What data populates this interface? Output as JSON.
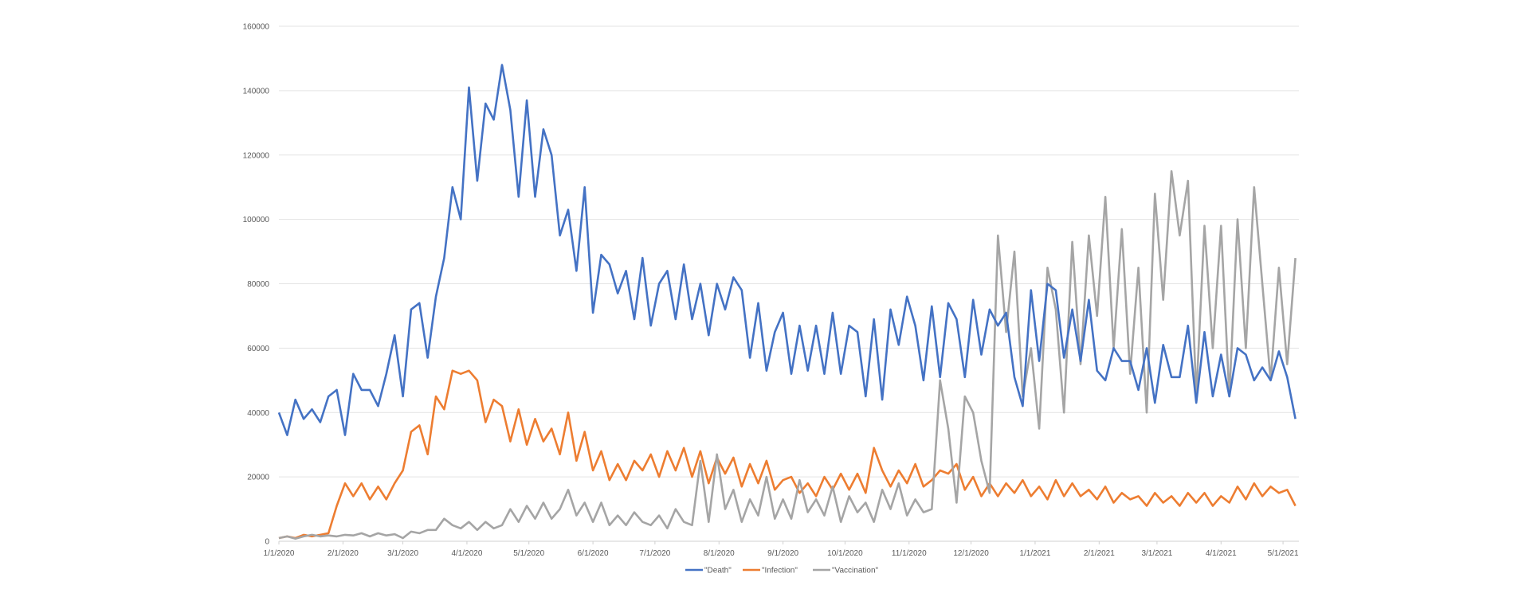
{
  "chart_data": {
    "type": "line",
    "title": "",
    "xlabel": "",
    "ylabel": "",
    "ylim": [
      0,
      160000
    ],
    "yticks": [
      0,
      20000,
      40000,
      60000,
      80000,
      100000,
      120000,
      140000,
      160000
    ],
    "xlim": [
      "1/1/2020",
      "5/11/2021"
    ],
    "xticks": [
      "1/1/2020",
      "2/1/2020",
      "3/1/2020",
      "4/1/2020",
      "5/1/2020",
      "6/1/2020",
      "7/1/2020",
      "8/1/2020",
      "9/1/2020",
      "10/1/2020",
      "11/1/2020",
      "12/1/2020",
      "1/1/2021",
      "2/1/2021",
      "3/1/2021",
      "4/1/2021",
      "5/1/2021"
    ],
    "grid": "horizontal",
    "legend_position": "bottom",
    "x": [
      "1/1/2020",
      "1/5/2020",
      "1/9/2020",
      "1/13/2020",
      "1/17/2020",
      "1/21/2020",
      "1/25/2020",
      "1/29/2020",
      "2/2/2020",
      "2/6/2020",
      "2/10/2020",
      "2/14/2020",
      "2/18/2020",
      "2/22/2020",
      "2/26/2020",
      "3/1/2020",
      "3/5/2020",
      "3/9/2020",
      "3/13/2020",
      "3/17/2020",
      "3/21/2020",
      "3/25/2020",
      "3/29/2020",
      "4/2/2020",
      "4/6/2020",
      "4/10/2020",
      "4/14/2020",
      "4/18/2020",
      "4/22/2020",
      "4/26/2020",
      "4/30/2020",
      "5/4/2020",
      "5/8/2020",
      "5/12/2020",
      "5/16/2020",
      "5/20/2020",
      "5/24/2020",
      "5/28/2020",
      "6/1/2020",
      "6/5/2020",
      "6/9/2020",
      "6/13/2020",
      "6/17/2020",
      "6/21/2020",
      "6/25/2020",
      "6/29/2020",
      "7/3/2020",
      "7/7/2020",
      "7/11/2020",
      "7/15/2020",
      "7/19/2020",
      "7/23/2020",
      "7/27/2020",
      "7/31/2020",
      "8/4/2020",
      "8/8/2020",
      "8/12/2020",
      "8/16/2020",
      "8/20/2020",
      "8/24/2020",
      "8/28/2020",
      "9/1/2020",
      "9/5/2020",
      "9/9/2020",
      "9/13/2020",
      "9/17/2020",
      "9/21/2020",
      "9/25/2020",
      "9/29/2020",
      "10/3/2020",
      "10/7/2020",
      "10/11/2020",
      "10/15/2020",
      "10/19/2020",
      "10/23/2020",
      "10/27/2020",
      "10/31/2020",
      "11/4/2020",
      "11/8/2020",
      "11/12/2020",
      "11/16/2020",
      "11/20/2020",
      "11/24/2020",
      "11/28/2020",
      "12/2/2020",
      "12/6/2020",
      "12/10/2020",
      "12/14/2020",
      "12/18/2020",
      "12/22/2020",
      "12/26/2020",
      "12/30/2020",
      "1/3/2021",
      "1/7/2021",
      "1/11/2021",
      "1/15/2021",
      "1/19/2021",
      "1/23/2021",
      "1/27/2021",
      "1/31/2021",
      "2/4/2021",
      "2/8/2021",
      "2/12/2021",
      "2/16/2021",
      "2/20/2021",
      "2/24/2021",
      "2/28/2021",
      "3/4/2021",
      "3/8/2021",
      "3/12/2021",
      "3/16/2021",
      "3/20/2021",
      "3/24/2021",
      "3/28/2021",
      "4/1/2021",
      "4/5/2021",
      "4/9/2021",
      "4/13/2021",
      "4/17/2021",
      "4/21/2021",
      "4/25/2021",
      "4/29/2021",
      "5/3/2021",
      "5/7/2021"
    ],
    "series": [
      {
        "name": "\"Death\"",
        "color": "#4472C4",
        "values": [
          40000,
          33000,
          44000,
          38000,
          41000,
          37000,
          45000,
          47000,
          33000,
          52000,
          47000,
          47000,
          42000,
          52000,
          64000,
          45000,
          72000,
          74000,
          57000,
          76000,
          88000,
          110000,
          100000,
          141000,
          112000,
          136000,
          131000,
          148000,
          134000,
          107000,
          137000,
          107000,
          128000,
          120000,
          95000,
          103000,
          84000,
          110000,
          71000,
          89000,
          86000,
          77000,
          84000,
          69000,
          88000,
          67000,
          80000,
          84000,
          69000,
          86000,
          69000,
          80000,
          64000,
          80000,
          72000,
          82000,
          78000,
          57000,
          74000,
          53000,
          65000,
          71000,
          52000,
          67000,
          53000,
          67000,
          52000,
          71000,
          52000,
          67000,
          65000,
          45000,
          69000,
          44000,
          72000,
          61000,
          76000,
          67000,
          50000,
          73000,
          51000,
          74000,
          69000,
          51000,
          75000,
          58000,
          72000,
          67000,
          71000,
          51000,
          42000,
          78000,
          56000,
          80000,
          78000,
          57000,
          72000,
          56000,
          75000,
          53000,
          50000,
          60000,
          56000,
          56000,
          47000,
          60000,
          43000,
          61000,
          51000,
          51000,
          67000,
          43000,
          65000,
          45000,
          58000,
          45000,
          60000,
          58000,
          50000,
          54000,
          50000,
          59000,
          51000,
          38000
        ]
      },
      {
        "name": "\"Infection\"",
        "color": "#ED7D31",
        "values": [
          1000,
          1500,
          1000,
          2000,
          1500,
          2000,
          2500,
          11000,
          18000,
          14000,
          18000,
          13000,
          17000,
          13000,
          18000,
          22000,
          34000,
          36000,
          27000,
          45000,
          41000,
          53000,
          52000,
          53000,
          50000,
          37000,
          44000,
          42000,
          31000,
          41000,
          30000,
          38000,
          31000,
          35000,
          27000,
          40000,
          25000,
          34000,
          22000,
          28000,
          19000,
          24000,
          19000,
          25000,
          22000,
          27000,
          20000,
          28000,
          22000,
          29000,
          20000,
          28000,
          18000,
          26000,
          21000,
          26000,
          17000,
          24000,
          18000,
          25000,
          16000,
          19000,
          20000,
          15000,
          18000,
          14000,
          20000,
          16000,
          21000,
          16000,
          21000,
          15000,
          29000,
          22000,
          17000,
          22000,
          18000,
          24000,
          17000,
          19000,
          22000,
          21000,
          24000,
          16000,
          20000,
          14000,
          18000,
          14000,
          18000,
          15000,
          19000,
          14000,
          17000,
          13000,
          19000,
          14000,
          18000,
          14000,
          16000,
          13000,
          17000,
          12000,
          15000,
          13000,
          14000,
          11000,
          15000,
          12000,
          14000,
          11000,
          15000,
          12000,
          15000,
          11000,
          14000,
          12000,
          17000,
          13000,
          18000,
          14000,
          17000,
          15000,
          16000,
          11000
        ]
      },
      {
        "name": "\"Vaccination\"",
        "color": "#A5A5A5",
        "values": [
          1000,
          1500,
          800,
          1500,
          2000,
          1500,
          1800,
          1500,
          2000,
          1800,
          2500,
          1500,
          2500,
          1800,
          2200,
          1000,
          3000,
          2500,
          3500,
          3500,
          7000,
          5000,
          4000,
          6000,
          3500,
          6000,
          4000,
          5000,
          10000,
          6000,
          11000,
          7000,
          12000,
          7000,
          10000,
          16000,
          8000,
          12000,
          6000,
          12000,
          5000,
          8000,
          5000,
          9000,
          6000,
          5000,
          8000,
          4000,
          10000,
          6000,
          5000,
          25000,
          6000,
          27000,
          10000,
          16000,
          6000,
          13000,
          8000,
          20000,
          7000,
          13000,
          7000,
          19000,
          9000,
          13000,
          8000,
          17000,
          6000,
          14000,
          9000,
          12000,
          6000,
          16000,
          10000,
          18000,
          8000,
          13000,
          9000,
          10000,
          50000,
          35000,
          12000,
          45000,
          40000,
          25000,
          15000,
          95000,
          65000,
          90000,
          45000,
          60000,
          35000,
          85000,
          72000,
          40000,
          93000,
          55000,
          95000,
          70000,
          107000,
          60000,
          97000,
          52000,
          85000,
          40000,
          108000,
          75000,
          115000,
          95000,
          112000,
          45000,
          98000,
          60000,
          98000,
          45000,
          100000,
          60000,
          110000,
          80000,
          50000,
          85000,
          55000,
          88000
        ]
      }
    ]
  }
}
